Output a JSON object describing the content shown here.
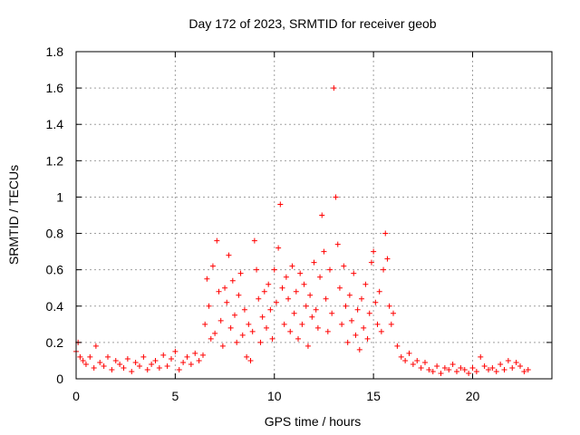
{
  "chart_data": {
    "type": "scatter",
    "title": "Day 172 of 2023, SRMTID for receiver geob",
    "xlabel": "GPS time / hours",
    "ylabel": "SRMTID / TECUs",
    "xlim": [
      0,
      24
    ],
    "ylim": [
      0,
      1.8
    ],
    "x_ticks": [
      "0",
      "5",
      "10",
      "15",
      "20"
    ],
    "y_ticks": [
      "0",
      "0.2",
      "0.4",
      "0.6",
      "0.8",
      "1",
      "1.2",
      "1.4",
      "1.6",
      "1.8"
    ],
    "grid": true,
    "marker": "plus",
    "point_color": "#ff0000",
    "series": [
      {
        "name": "SRMTID",
        "x": [
          0.0,
          0.1,
          0.2,
          0.35,
          0.5,
          0.7,
          0.9,
          1.0,
          1.2,
          1.4,
          1.6,
          1.8,
          2.0,
          2.2,
          2.4,
          2.6,
          2.8,
          3.0,
          3.2,
          3.4,
          3.6,
          3.8,
          4.0,
          4.2,
          4.4,
          4.6,
          4.8,
          5.0,
          5.2,
          5.4,
          5.6,
          5.8,
          6.0,
          6.2,
          6.4,
          6.5,
          6.6,
          6.7,
          6.8,
          6.9,
          7.0,
          7.1,
          7.2,
          7.3,
          7.4,
          7.5,
          7.6,
          7.7,
          7.8,
          7.9,
          8.0,
          8.1,
          8.2,
          8.3,
          8.4,
          8.5,
          8.6,
          8.7,
          8.8,
          8.9,
          9.0,
          9.1,
          9.2,
          9.3,
          9.4,
          9.5,
          9.6,
          9.7,
          9.8,
          9.9,
          10.0,
          10.1,
          10.2,
          10.3,
          10.4,
          10.5,
          10.6,
          10.7,
          10.8,
          10.9,
          11.0,
          11.1,
          11.2,
          11.3,
          11.4,
          11.5,
          11.6,
          11.7,
          11.8,
          11.9,
          12.0,
          12.1,
          12.2,
          12.3,
          12.4,
          12.5,
          12.6,
          12.7,
          12.8,
          12.9,
          13.0,
          13.1,
          13.2,
          13.3,
          13.4,
          13.5,
          13.6,
          13.7,
          13.8,
          13.9,
          14.0,
          14.1,
          14.2,
          14.3,
          14.4,
          14.5,
          14.6,
          14.7,
          14.8,
          14.9,
          15.0,
          15.1,
          15.2,
          15.3,
          15.4,
          15.5,
          15.6,
          15.7,
          15.8,
          15.9,
          16.0,
          16.2,
          16.4,
          16.6,
          16.8,
          17.0,
          17.2,
          17.4,
          17.6,
          17.8,
          18.0,
          18.2,
          18.4,
          18.6,
          18.8,
          19.0,
          19.2,
          19.4,
          19.6,
          19.8,
          20.0,
          20.2,
          20.4,
          20.6,
          20.8,
          21.0,
          21.2,
          21.4,
          21.6,
          21.8,
          22.0,
          22.2,
          22.4,
          22.6,
          22.8
        ],
        "y": [
          0.15,
          0.2,
          0.12,
          0.1,
          0.08,
          0.12,
          0.06,
          0.18,
          0.09,
          0.07,
          0.12,
          0.05,
          0.1,
          0.08,
          0.06,
          0.11,
          0.04,
          0.09,
          0.07,
          0.12,
          0.05,
          0.08,
          0.1,
          0.06,
          0.13,
          0.07,
          0.11,
          0.15,
          0.05,
          0.09,
          0.12,
          0.08,
          0.14,
          0.1,
          0.13,
          0.3,
          0.55,
          0.4,
          0.22,
          0.62,
          0.25,
          0.76,
          0.48,
          0.32,
          0.18,
          0.5,
          0.42,
          0.68,
          0.28,
          0.54,
          0.35,
          0.2,
          0.46,
          0.58,
          0.24,
          0.38,
          0.12,
          0.3,
          0.1,
          0.26,
          0.76,
          0.6,
          0.44,
          0.2,
          0.34,
          0.48,
          0.28,
          0.52,
          0.38,
          0.22,
          0.6,
          0.42,
          0.72,
          0.96,
          0.5,
          0.3,
          0.56,
          0.44,
          0.26,
          0.62,
          0.36,
          0.48,
          0.22,
          0.58,
          0.3,
          0.52,
          0.4,
          0.18,
          0.46,
          0.34,
          0.64,
          0.38,
          0.28,
          0.56,
          0.9,
          0.7,
          0.44,
          0.26,
          0.6,
          0.36,
          1.6,
          1.0,
          0.74,
          0.5,
          0.3,
          0.62,
          0.4,
          0.2,
          0.46,
          0.32,
          0.58,
          0.24,
          0.38,
          0.16,
          0.44,
          0.28,
          0.52,
          0.22,
          0.36,
          0.64,
          0.7,
          0.42,
          0.3,
          0.48,
          0.26,
          0.6,
          0.8,
          0.66,
          0.4,
          0.3,
          0.36,
          0.18,
          0.12,
          0.1,
          0.14,
          0.08,
          0.1,
          0.06,
          0.09,
          0.05,
          0.04,
          0.07,
          0.03,
          0.06,
          0.05,
          0.08,
          0.04,
          0.06,
          0.05,
          0.03,
          0.06,
          0.04,
          0.12,
          0.07,
          0.05,
          0.06,
          0.04,
          0.08,
          0.05,
          0.1,
          0.06,
          0.09,
          0.07,
          0.04,
          0.05
        ]
      }
    ]
  }
}
